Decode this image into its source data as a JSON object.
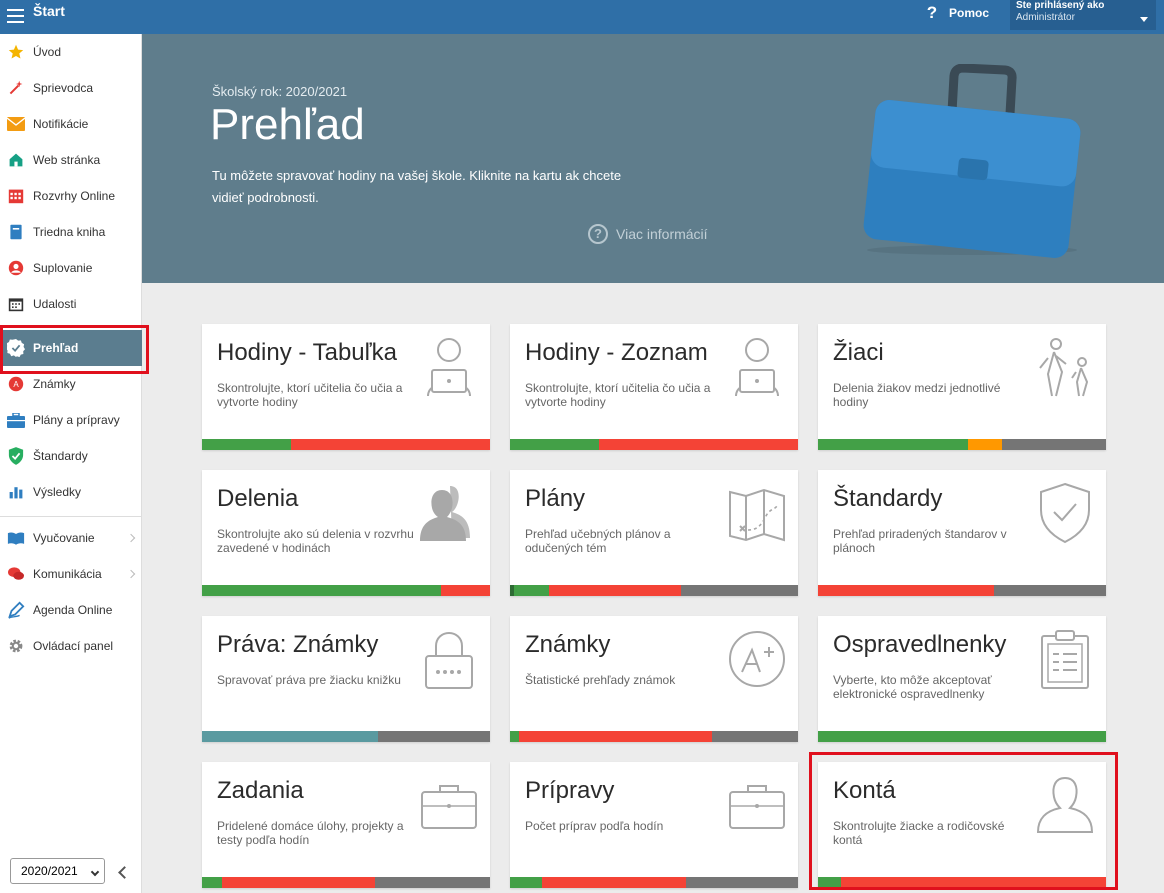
{
  "topbar": {
    "title": "Štart",
    "help_label": "Pomoc",
    "user_line1": "Ste prihlásený ako",
    "user_line2": "Administrátor"
  },
  "sidebar": {
    "items": [
      {
        "label": "Úvod",
        "icon": "star-icon",
        "color": "#f4b400"
      },
      {
        "label": "Sprievodca",
        "icon": "wand-icon",
        "color": "#e53935"
      },
      {
        "label": "Notifikácie",
        "icon": "envelope-icon",
        "color": "#f39c12"
      },
      {
        "label": "Web stránka",
        "icon": "house-icon",
        "color": "#16a085"
      },
      {
        "label": "Rozvrhy Online",
        "icon": "calendar-grid-icon",
        "color": "#e53935"
      },
      {
        "label": "Triedna kniha",
        "icon": "notebook-icon",
        "color": "#2f7ec0"
      },
      {
        "label": "Suplovanie",
        "icon": "person-icon",
        "color": "#e53935"
      },
      {
        "label": "Udalosti",
        "icon": "calendar-icon",
        "color": "#333333"
      },
      {
        "label": "Prehľad",
        "icon": "check-badge-icon",
        "color": "#ffffff",
        "active": true
      },
      {
        "label": "Známky",
        "icon": "grade-icon",
        "color": "#e53935"
      },
      {
        "label": "Plány a prípravy",
        "icon": "briefcase-icon",
        "color": "#2f7ec0"
      },
      {
        "label": "Štandardy",
        "icon": "shield-check-icon",
        "color": "#27ae60"
      },
      {
        "label": "Výsledky",
        "icon": "bar-chart-icon",
        "color": "#2f7ec0"
      },
      {
        "label": "Vyučovanie",
        "icon": "open-book-icon",
        "color": "#2f7ec0",
        "submenu": true
      },
      {
        "label": "Komunikácia",
        "icon": "chat-icon",
        "color": "#e53935",
        "submenu": true
      },
      {
        "label": "Agenda Online",
        "icon": "pencil-icon",
        "color": "#2f7ec0"
      },
      {
        "label": "Ovládací panel",
        "icon": "gear-icon",
        "color": "#888888"
      }
    ],
    "year_select": "2020/2021"
  },
  "hero": {
    "school_year": "Školský rok: 2020/2021",
    "title": "Prehľad",
    "description": "Tu môžete spravovať hodiny na vašej škole. Kliknite na kartu ak chcete vidieť podrobnosti.",
    "more_info": "Viac informácií"
  },
  "colors": {
    "green": "#43a047",
    "red": "#f44336",
    "orange": "#ff9800",
    "gray": "#757575",
    "teal": "#5a9aa0",
    "darkgreen": "#2e6b34"
  },
  "cards": [
    {
      "title": "Hodiny - Tabuľka",
      "desc": "Skontrolujte, ktorí učitelia čo učia a vytvorte hodiny",
      "icon": "teacher-laptop-icon",
      "bar": [
        {
          "c": "green",
          "w": 31
        },
        {
          "c": "red",
          "w": 69
        }
      ]
    },
    {
      "title": "Hodiny - Zoznam",
      "desc": "Skontrolujte, ktorí učitelia čo učia a vytvorte hodiny",
      "icon": "teacher-laptop-icon",
      "bar": [
        {
          "c": "green",
          "w": 31
        },
        {
          "c": "red",
          "w": 69
        }
      ]
    },
    {
      "title": "Žiaci",
      "desc": "Delenia žiakov medzi jednotlivé hodiny",
      "icon": "hiking-kids-icon",
      "bar": [
        {
          "c": "green",
          "w": 52
        },
        {
          "c": "orange",
          "w": 12
        },
        {
          "c": "gray",
          "w": 36
        }
      ]
    },
    {
      "title": "Delenia",
      "desc": "Skontrolujte ako sú delenia v rozvrhu zavedené v hodinách",
      "icon": "two-persons-icon",
      "bar": [
        {
          "c": "green",
          "w": 83
        },
        {
          "c": "red",
          "w": 17
        }
      ]
    },
    {
      "title": "Plány",
      "desc": "Prehľad učebných plánov a odučených tém",
      "icon": "treasure-map-icon",
      "bar": [
        {
          "c": "darkgreen",
          "w": 1.5
        },
        {
          "c": "green",
          "w": 12
        },
        {
          "c": "red",
          "w": 46
        },
        {
          "c": "gray",
          "w": 40.5
        }
      ]
    },
    {
      "title": "Štandardy",
      "desc": "Prehľad priradených štandarov v plánoch",
      "icon": "shield-check-icon",
      "bar": [
        {
          "c": "red",
          "w": 61
        },
        {
          "c": "gray",
          "w": 39
        }
      ]
    },
    {
      "title": "Práva: Známky",
      "desc": "Spravovať práva pre žiacku knižku",
      "icon": "padlock-icon",
      "bar": [
        {
          "c": "teal",
          "w": 61
        },
        {
          "c": "gray",
          "w": 39
        }
      ]
    },
    {
      "title": "Známky",
      "desc": "Štatistické prehľady známok",
      "icon": "a-plus-grade-icon",
      "bar": [
        {
          "c": "green",
          "w": 3
        },
        {
          "c": "red",
          "w": 67
        },
        {
          "c": "gray",
          "w": 30
        }
      ]
    },
    {
      "title": "Ospravedlnenky",
      "desc": "Vyberte, kto môže akceptovať elektronické ospravedlnenky",
      "icon": "clipboard-icon",
      "bar": [
        {
          "c": "green",
          "w": 100
        }
      ]
    },
    {
      "title": "Zadania",
      "desc": "Pridelené domáce úlohy, projekty a testy podľa hodín",
      "icon": "briefcase-outline-icon",
      "bar": [
        {
          "c": "green",
          "w": 7
        },
        {
          "c": "red",
          "w": 53
        },
        {
          "c": "gray",
          "w": 40
        }
      ]
    },
    {
      "title": "Prípravy",
      "desc": "Počet príprav podľa hodín",
      "icon": "briefcase-outline-icon",
      "bar": [
        {
          "c": "green",
          "w": 11
        },
        {
          "c": "red",
          "w": 50
        },
        {
          "c": "gray",
          "w": 39
        }
      ]
    },
    {
      "title": "Kontá",
      "desc": "Skontrolujte žiacke a rodičovské kontá",
      "icon": "person-outline-icon",
      "bar": [
        {
          "c": "green",
          "w": 8
        },
        {
          "c": "red",
          "w": 92
        }
      ]
    }
  ]
}
